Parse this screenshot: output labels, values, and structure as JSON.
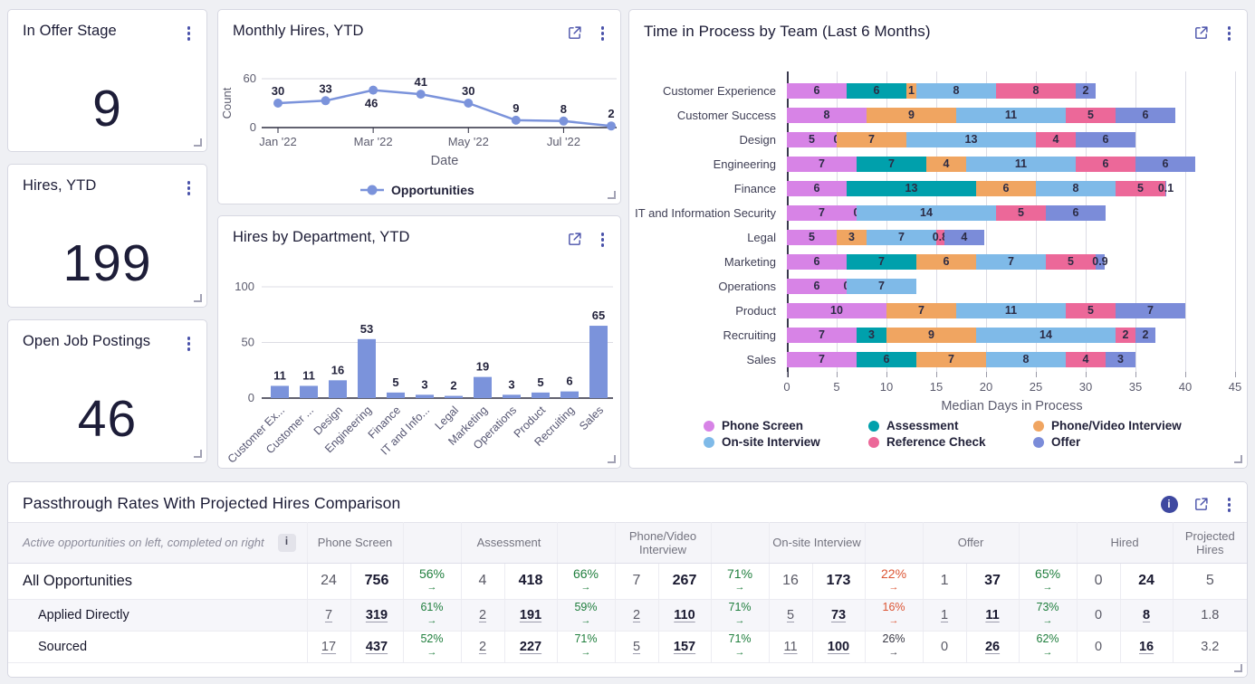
{
  "colors": {
    "accent_icon": "#4a52aa",
    "series_blue": "#7b93db",
    "page_bg": "#eff0f4",
    "pct_green": "#1f7e3d",
    "pct_red": "#dc5433",
    "pct_dark": "#3a3a46",
    "stages": {
      "Phone Screen": "#d783e6",
      "Assessment": "#00a0ac",
      "Phone/Video Interview": "#f0a561",
      "On-site Interview": "#7fbae8",
      "Reference Check": "#ec6899",
      "Offer": "#7b8cd9"
    }
  },
  "kpis": [
    {
      "title": "In Offer Stage",
      "value": "9"
    },
    {
      "title": "Hires, YTD",
      "value": "199"
    },
    {
      "title": "Open Job Postings",
      "value": "46"
    }
  ],
  "chart_data": [
    {
      "id": "monthly-hires",
      "type": "line",
      "title": "Monthly Hires, YTD",
      "x": [
        "Jan '22",
        "Feb '22",
        "Mar '22",
        "Apr '22",
        "May '22",
        "Jun '22",
        "Jul '22",
        "Aug '22"
      ],
      "values": [
        30,
        33,
        46,
        41,
        30,
        9,
        8,
        2
      ],
      "xtick_indices": [
        0,
        2,
        4,
        6
      ],
      "xtick_labels": [
        "Jan '22",
        "Mar '22",
        "May '22",
        "Jul '22"
      ],
      "label_below_indices": [
        2
      ],
      "xlabel": "Date",
      "ylabel": "Count",
      "ylim": [
        0,
        60
      ],
      "yticks": [
        0,
        60
      ],
      "legend": [
        "Opportunities"
      ],
      "grid": "top-line-only",
      "legend_position": "bottom-center"
    },
    {
      "id": "hires-by-department",
      "type": "bar",
      "title": "Hires by Department, YTD",
      "categories": [
        "Customer Ex...",
        "Customer ...",
        "Design",
        "Engineering",
        "Finance",
        "IT and Info...",
        "Legal",
        "Marketing",
        "Operations",
        "Product",
        "Recruiting",
        "Sales"
      ],
      "values": [
        11,
        11,
        16,
        53,
        5,
        3,
        2,
        19,
        3,
        5,
        6,
        65
      ],
      "ylim": [
        0,
        100
      ],
      "yticks": [
        0,
        50,
        100
      ],
      "xlabel": "",
      "ylabel": "",
      "grid": "horizontal"
    },
    {
      "id": "time-in-process",
      "type": "stacked_bar_h",
      "title": "Time in Process by Team (Last 6 Months)",
      "stages": [
        "Phone Screen",
        "Assessment",
        "Phone/Video Interview",
        "On-site Interview",
        "Reference Check",
        "Offer"
      ],
      "teams": [
        {
          "team": "Customer Experience",
          "values": [
            6,
            6,
            1,
            8,
            8,
            2
          ]
        },
        {
          "team": "Customer Success",
          "values": [
            8,
            null,
            9,
            11,
            5,
            6
          ]
        },
        {
          "team": "Design",
          "values": [
            5,
            0,
            7,
            13,
            4,
            6
          ]
        },
        {
          "team": "Engineering",
          "values": [
            7,
            7,
            4,
            11,
            6,
            6
          ]
        },
        {
          "team": "Finance",
          "values": [
            6,
            13,
            6,
            8,
            5,
            0.1
          ]
        },
        {
          "team": "IT and Information Security",
          "values": [
            7,
            0,
            null,
            14,
            5,
            6
          ]
        },
        {
          "team": "Legal",
          "values": [
            5,
            null,
            3,
            7,
            0.8,
            4
          ]
        },
        {
          "team": "Marketing",
          "values": [
            6,
            7,
            6,
            7,
            5,
            0.9
          ]
        },
        {
          "team": "Operations",
          "values": [
            6,
            0,
            null,
            7,
            null,
            null
          ]
        },
        {
          "team": "Product",
          "values": [
            10,
            null,
            7,
            11,
            5,
            7
          ]
        },
        {
          "team": "Recruiting",
          "values": [
            7,
            3,
            9,
            14,
            2,
            2
          ]
        },
        {
          "team": "Sales",
          "values": [
            7,
            6,
            7,
            8,
            4,
            3
          ]
        }
      ],
      "xlabel": "Median Days in Process",
      "xlim": [
        0,
        45
      ],
      "xticks": [
        0,
        5,
        10,
        15,
        20,
        25,
        30,
        35,
        40,
        45
      ],
      "legend_rows": [
        [
          "Phone Screen",
          "Assessment",
          "Phone/Video Interview"
        ],
        [
          "On-site Interview",
          "Reference Check",
          "Offer"
        ]
      ],
      "legend_position": "bottom-left"
    }
  ],
  "passthrough_table": {
    "title": "Passthrough Rates With Projected Hires Comparison",
    "note": "Active opportunities on left, completed on right",
    "note_badge": "i",
    "stage_groups": [
      "Phone Screen",
      "Assessment",
      "Phone/Video Interview",
      "On-site Interview",
      "Offer"
    ],
    "hired_label": "Hired",
    "projected_label": "Projected Hires",
    "rows": [
      {
        "name": "All Opportunities",
        "link": false,
        "stages": [
          [
            "24",
            "756",
            "56%",
            "green"
          ],
          [
            "4",
            "418",
            "66%",
            "green"
          ],
          [
            "7",
            "267",
            "71%",
            "green"
          ],
          [
            "16",
            "173",
            "22%",
            "red"
          ],
          [
            "1",
            "37",
            "65%",
            "green"
          ]
        ],
        "hired": [
          "0",
          "24"
        ],
        "projected": "5"
      },
      {
        "name": "Applied Directly",
        "link": true,
        "stages": [
          [
            "7",
            "319",
            "61%",
            "green"
          ],
          [
            "2",
            "191",
            "59%",
            "green"
          ],
          [
            "2",
            "110",
            "71%",
            "green"
          ],
          [
            "5",
            "73",
            "16%",
            "red"
          ],
          [
            "1",
            "11",
            "73%",
            "green"
          ]
        ],
        "hired": [
          "0",
          "8"
        ],
        "projected": "1.8"
      },
      {
        "name": "Sourced",
        "link": true,
        "stages": [
          [
            "17",
            "437",
            "52%",
            "green"
          ],
          [
            "2",
            "227",
            "71%",
            "green"
          ],
          [
            "5",
            "157",
            "71%",
            "green"
          ],
          [
            "11",
            "100",
            "26%",
            "dark"
          ],
          [
            "0",
            "26",
            "62%",
            "green"
          ]
        ],
        "hired": [
          "0",
          "16"
        ],
        "projected": "3.2"
      }
    ],
    "arrow": "→"
  }
}
